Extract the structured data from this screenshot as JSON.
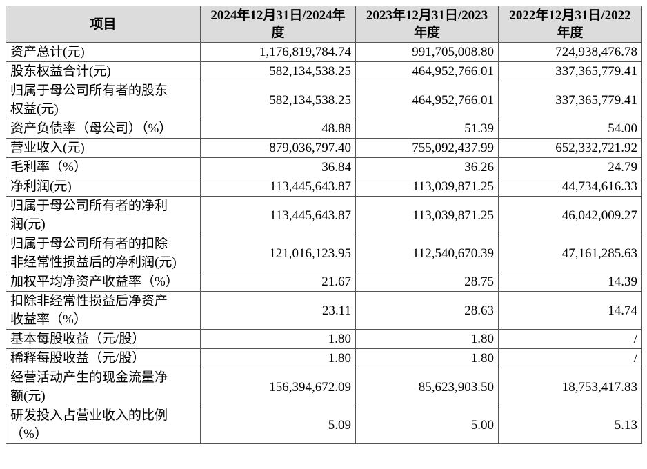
{
  "table": {
    "header": [
      "项目",
      "2024年12月31日/2024年度",
      "2023年12月31日/2023年度",
      "2022年12月31日/2022年度"
    ],
    "rows": [
      [
        "资产总计(元)",
        "1,176,819,784.74",
        "991,705,008.80",
        "724,938,476.78"
      ],
      [
        "股东权益合计(元)",
        "582,134,538.25",
        "464,952,766.01",
        "337,365,779.41"
      ],
      [
        "归属于母公司所有者的股东权益(元)",
        "582,134,538.25",
        "464,952,766.01",
        "337,365,779.41"
      ],
      [
        "资产负债率（母公司）（%）",
        "48.88",
        "51.39",
        "54.00"
      ],
      [
        "营业收入(元)",
        "879,036,797.40",
        "755,092,437.99",
        "652,332,721.92"
      ],
      [
        "毛利率（%）",
        "36.84",
        "36.26",
        "24.79"
      ],
      [
        "净利润(元)",
        "113,445,643.87",
        "113,039,871.25",
        "44,734,616.33"
      ],
      [
        "归属于母公司所有者的净利润(元)",
        "113,445,643.87",
        "113,039,871.25",
        "46,042,009.27"
      ],
      [
        "归属于母公司所有者的扣除非经常性损益后的净利润(元)",
        "121,016,123.95",
        "112,540,670.39",
        "47,161,285.63"
      ],
      [
        "加权平均净资产收益率（%）",
        "21.67",
        "28.75",
        "14.39"
      ],
      [
        "扣除非经常性损益后净资产收益率（%）",
        "23.11",
        "28.63",
        "14.74"
      ],
      [
        "基本每股收益（元/股）",
        "1.80",
        "1.80",
        "/"
      ],
      [
        "稀释每股收益（元/股）",
        "1.80",
        "1.80",
        "/"
      ],
      [
        "经营活动产生的现金流量净额(元)",
        "156,394,672.09",
        "85,623,903.50",
        "18,753,417.83"
      ],
      [
        "研发投入占营业收入的比例（%）",
        "5.09",
        "5.00",
        "5.13"
      ]
    ]
  }
}
